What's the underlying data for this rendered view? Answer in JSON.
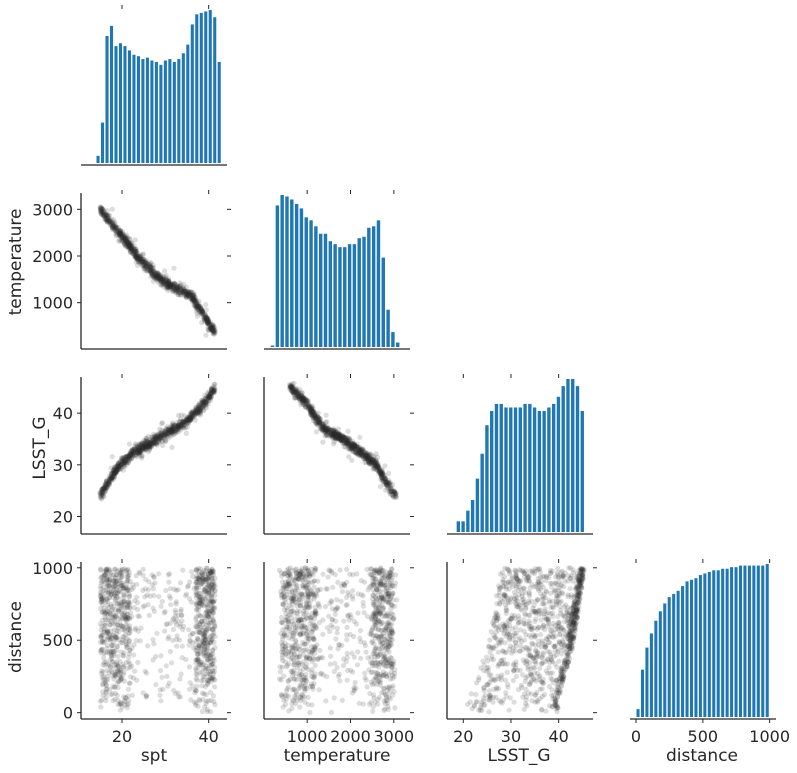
{
  "chart_data": {
    "type": "pairplot",
    "variables": [
      "spt",
      "temperature",
      "LSST_G",
      "distance"
    ],
    "corner": true,
    "grid": false,
    "colors": {
      "hist": "#1f77b4",
      "scatter": "#2b2b2b"
    },
    "ranges": {
      "spt": [
        11,
        44
      ],
      "temperature": [
        50,
        3350
      ],
      "LSST_G": [
        17,
        47
      ],
      "distance": [
        -30,
        1040
      ]
    },
    "ticks": {
      "spt": [
        20,
        40
      ],
      "temperature": [
        1000,
        2000,
        3000
      ],
      "LSST_G": [
        20,
        30,
        40
      ],
      "distance": [
        0,
        500,
        1000
      ]
    },
    "tick_labels": {
      "spt": [
        "20",
        "40"
      ],
      "temperature": [
        "1000",
        "2000",
        "3000"
      ],
      "LSST_G": [
        "20",
        "30",
        "40"
      ],
      "distance": [
        "0",
        "500",
        "1000"
      ]
    },
    "x_axis_labels": [
      "spt",
      "temperature",
      "LSST_G",
      "distance"
    ],
    "y_axis_labels": [
      "temperature",
      "LSST_G",
      "distance"
    ],
    "histograms": {
      "spt": {
        "bin_edges": [
          14,
          43
        ],
        "counts": [
          5,
          28,
          88,
          95,
          81,
          83,
          81,
          78,
          75,
          74,
          72,
          73,
          71,
          70,
          68,
          71,
          72,
          70,
          72,
          76,
          82,
          96,
          103,
          104,
          105,
          106,
          101,
          70
        ]
      },
      "temperature": {
        "bin_edges": [
          150,
          3150
        ],
        "counts": [
          1,
          95,
          102,
          101,
          99,
          96,
          93,
          87,
          85,
          81,
          76,
          76,
          71,
          69,
          67,
          67,
          69,
          69,
          73,
          74,
          80,
          81,
          85,
          60,
          25,
          10,
          3
        ]
      },
      "LSST_G": {
        "bin_edges": [
          18.5,
          45.5
        ],
        "counts": [
          3,
          3,
          6,
          9,
          15,
          22,
          30,
          34,
          36,
          36,
          35,
          35,
          35,
          35,
          36,
          36,
          35,
          34,
          34,
          35,
          36,
          38,
          41,
          43,
          43,
          41,
          34
        ]
      },
      "distance": {
        "bin_edges": [
          0,
          1000
        ],
        "counts": [
          5,
          30,
          44,
          53,
          61,
          67,
          72,
          76,
          78,
          80,
          83,
          86,
          87,
          88,
          90,
          91,
          92,
          93,
          93,
          94,
          94,
          95,
          95,
          96,
          96,
          96,
          96,
          96,
          96,
          97
        ]
      }
    },
    "trend_curves": {
      "note": "approximate point-cloud centrelines in data units",
      "temperature_vs_spt": {
        "x": [
          15,
          18,
          21,
          24,
          27,
          30,
          32,
          34,
          36,
          38,
          40,
          41.5
        ],
        "y": [
          3000,
          2650,
          2300,
          1950,
          1650,
          1420,
          1320,
          1270,
          1150,
          850,
          550,
          380
        ],
        "spread": 110
      },
      "LSST_G_vs_spt": {
        "x": [
          15,
          17,
          20,
          23,
          26,
          29,
          32,
          35,
          38,
          40,
          41.5
        ],
        "y": [
          24,
          27,
          30.5,
          32.5,
          34,
          35.5,
          37,
          38.5,
          41,
          43,
          45
        ],
        "spread": 1.0
      },
      "LSST_G_vs_temperature": {
        "x": [
          600,
          800,
          1000,
          1200,
          1400,
          1700,
          2000,
          2300,
          2600,
          2800,
          3000
        ],
        "y": [
          45,
          43.5,
          42,
          39,
          37,
          35.5,
          34,
          32,
          30,
          27,
          24.5
        ],
        "spread": 1.0
      }
    },
    "distance_vs_spt": {
      "dense_bands": [
        [
          15,
          22
        ],
        [
          37,
          41.5
        ]
      ],
      "range": [
        15,
        41.5
      ]
    },
    "distance_vs_temperature": {
      "dense_bands": [
        [
          400,
          1200
        ],
        [
          2500,
          3000
        ]
      ],
      "range": [
        400,
        3050
      ]
    },
    "distance_vs_LSST_G": {
      "left_edge": {
        "x": [
          19,
          22,
          25,
          28
        ],
        "y": [
          0,
          150,
          450,
          1000
        ]
      },
      "right_edge": {
        "x": [
          40,
          43,
          45.5
        ],
        "y": [
          100,
          450,
          1000
        ]
      }
    }
  }
}
